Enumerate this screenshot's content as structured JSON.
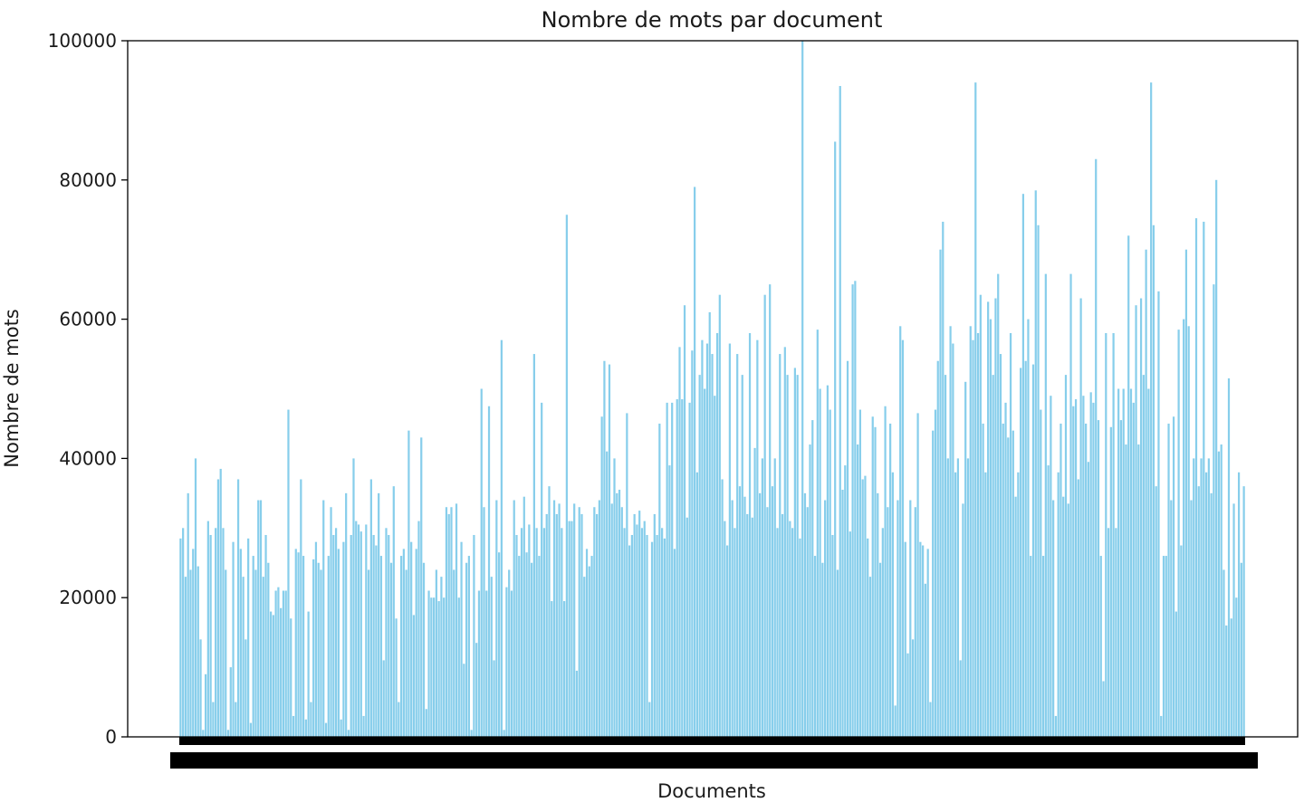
{
  "chart_data": {
    "type": "bar",
    "title": "Nombre de mots par document",
    "xlabel": "Documents",
    "ylabel": "Nombre de mots",
    "ylim": [
      0,
      100000
    ],
    "yticks": [
      0,
      20000,
      40000,
      60000,
      80000,
      100000
    ],
    "grid": false,
    "legend": "none",
    "bar_color": "#87CEEB",
    "xtick_labels_overlapping": true,
    "values": [
      28500,
      30000,
      23000,
      35000,
      24000,
      27000,
      40000,
      24500,
      14000,
      1000,
      9000,
      31000,
      29000,
      5000,
      30000,
      37000,
      38500,
      30000,
      24000,
      1000,
      10000,
      28000,
      5000,
      37000,
      27000,
      23000,
      14000,
      28500,
      2000,
      26000,
      24000,
      34000,
      34000,
      23000,
      29000,
      25000,
      18000,
      17500,
      21000,
      21500,
      18500,
      21000,
      21000,
      47000,
      17000,
      3000,
      27000,
      26500,
      37000,
      26000,
      2500,
      18000,
      5000,
      25500,
      28000,
      25000,
      24000,
      34000,
      2000,
      26000,
      33000,
      29000,
      30000,
      27000,
      2500,
      28000,
      35000,
      1000,
      29000,
      40000,
      31000,
      30500,
      29500,
      3000,
      30500,
      24000,
      37000,
      29000,
      27500,
      35000,
      26000,
      11000,
      30000,
      29000,
      25000,
      36000,
      17000,
      5000,
      26000,
      27000,
      24000,
      44000,
      28000,
      17500,
      27000,
      31000,
      43000,
      25000,
      4000,
      21000,
      20000,
      20000,
      24000,
      19500,
      23000,
      20000,
      33000,
      32000,
      33000,
      24000,
      33500,
      20000,
      28000,
      10500,
      25000,
      26000,
      1000,
      29000,
      13500,
      21000,
      50000,
      33000,
      21000,
      47500,
      23000,
      11000,
      34000,
      26500,
      57000,
      1000,
      21500,
      24000,
      21000,
      34000,
      29000,
      26000,
      30000,
      34500,
      26500,
      30500,
      25000,
      55000,
      30000,
      26000,
      48000,
      30000,
      32000,
      36000,
      19500,
      34000,
      32000,
      33500,
      30000,
      19500,
      75000,
      31000,
      31000,
      33500,
      9500,
      33000,
      32000,
      23000,
      27000,
      24500,
      26000,
      33000,
      32000,
      34000,
      46000,
      54000,
      41000,
      53500,
      33500,
      40000,
      35000,
      35500,
      33000,
      30000,
      46500,
      27500,
      29000,
      32000,
      30500,
      32500,
      30000,
      31000,
      29000,
      5000,
      28000,
      32000,
      29000,
      45000,
      30000,
      28500,
      48000,
      39000,
      48000,
      27000,
      48500,
      56000,
      48500,
      62000,
      31500,
      48000,
      55500,
      79000,
      38000,
      52000,
      57000,
      50000,
      56500,
      61000,
      55000,
      49000,
      58000,
      63500,
      37000,
      31000,
      27500,
      56500,
      34000,
      30000,
      55000,
      36000,
      52000,
      34500,
      32000,
      58000,
      31500,
      41500,
      57000,
      35000,
      40000,
      63500,
      33000,
      65000,
      36000,
      40000,
      30000,
      55000,
      32000,
      56000,
      52000,
      31000,
      30000,
      53000,
      52000,
      28500,
      100000,
      35000,
      33000,
      42000,
      45500,
      26000,
      58500,
      50000,
      25000,
      34000,
      50500,
      47000,
      29000,
      85500,
      24000,
      93500,
      35500,
      39000,
      54000,
      29500,
      65000,
      65500,
      42000,
      47000,
      37000,
      37500,
      28500,
      23000,
      46000,
      44500,
      35000,
      25000,
      30000,
      47500,
      33000,
      45000,
      38000,
      4500,
      34000,
      59000,
      57000,
      28000,
      12000,
      34000,
      14000,
      33000,
      46500,
      28000,
      27500,
      22000,
      27000,
      5000,
      44000,
      47000,
      54000,
      70000,
      74000,
      52000,
      40000,
      59000,
      56500,
      38000,
      40000,
      11000,
      33500,
      51000,
      40000,
      59000,
      57000,
      94000,
      58000,
      63500,
      45000,
      38000,
      62500,
      60000,
      52000,
      63000,
      66500,
      55000,
      45000,
      48000,
      43000,
      58000,
      44000,
      34500,
      38000,
      53000,
      78000,
      54000,
      60000,
      26000,
      53500,
      78500,
      73500,
      47000,
      26000,
      66500,
      39000,
      49000,
      34000,
      3000,
      38000,
      45000,
      34500,
      52000,
      33500,
      66500,
      47500,
      48500,
      37000,
      63000,
      49000,
      45000,
      39500,
      49500,
      48000,
      83000,
      45500,
      26000,
      8000,
      58000,
      30000,
      44500,
      58000,
      30000,
      50000,
      45500,
      50000,
      42000,
      72000,
      50000,
      48000,
      62000,
      42000,
      63000,
      52000,
      70000,
      50000,
      94000,
      73500,
      36000,
      64000,
      3000,
      26000,
      26000,
      45000,
      34000,
      46000,
      18000,
      58500,
      27500,
      60000,
      70000,
      59000,
      34000,
      40000,
      74500,
      36000,
      40000,
      74000,
      38000,
      40000,
      35000,
      65000,
      80000,
      41000,
      42000,
      24000,
      16000,
      51500,
      17000,
      33500,
      20000,
      38000,
      25000,
      36000
    ]
  }
}
